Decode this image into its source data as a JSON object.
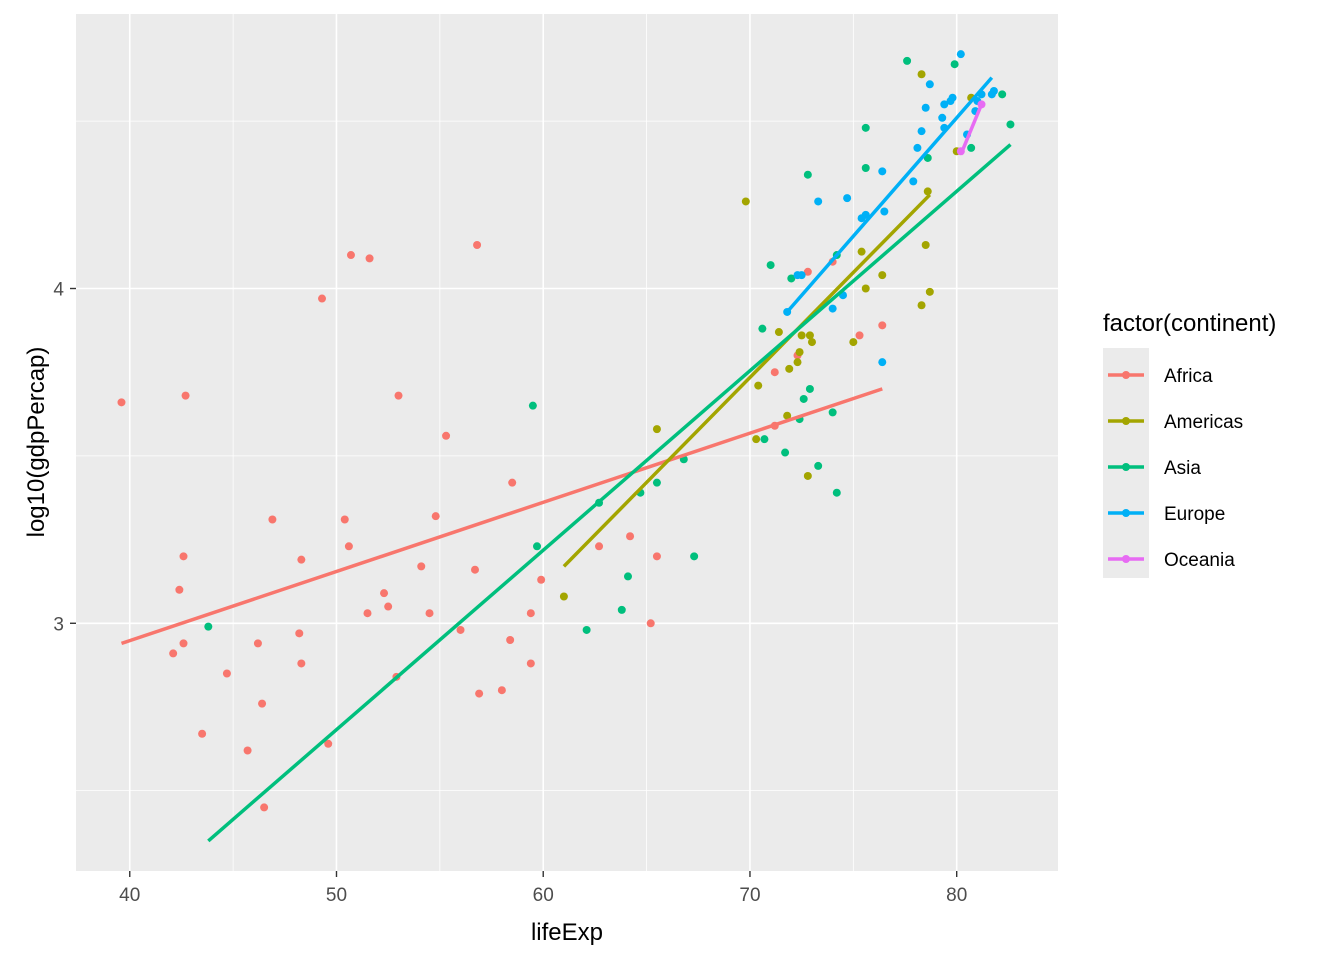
{
  "chart_data": {
    "type": "scatter",
    "title": "",
    "xlabel": "lifeExp",
    "ylabel": "log10(gdpPercap)",
    "xlim": [
      37.4,
      84.9
    ],
    "ylim": [
      2.26,
      4.82
    ],
    "xticks": [
      40,
      50,
      60,
      70,
      80
    ],
    "yticks": [
      3,
      4
    ],
    "legend": {
      "title": "factor(continent)",
      "position": "right"
    },
    "grid": true,
    "series": [
      {
        "name": "Africa",
        "color": "#F8766D",
        "points": [
          [
            39.6,
            3.66
          ],
          [
            42.1,
            2.91
          ],
          [
            42.4,
            3.1
          ],
          [
            42.6,
            2.94
          ],
          [
            42.6,
            3.2
          ],
          [
            42.7,
            3.68
          ],
          [
            43.5,
            2.67
          ],
          [
            44.7,
            2.85
          ],
          [
            45.7,
            2.62
          ],
          [
            46.2,
            2.94
          ],
          [
            46.4,
            2.76
          ],
          [
            46.5,
            2.45
          ],
          [
            46.9,
            3.31
          ],
          [
            48.2,
            2.97
          ],
          [
            48.3,
            2.88
          ],
          [
            48.3,
            3.19
          ],
          [
            49.3,
            3.97
          ],
          [
            49.6,
            2.64
          ],
          [
            50.4,
            3.31
          ],
          [
            50.6,
            3.23
          ],
          [
            50.7,
            4.1
          ],
          [
            51.5,
            3.03
          ],
          [
            51.6,
            4.09
          ],
          [
            52.3,
            3.09
          ],
          [
            52.5,
            3.05
          ],
          [
            52.9,
            2.84
          ],
          [
            53.0,
            3.68
          ],
          [
            54.1,
            3.17
          ],
          [
            54.5,
            3.03
          ],
          [
            54.8,
            3.32
          ],
          [
            55.3,
            3.56
          ],
          [
            56.0,
            2.98
          ],
          [
            56.7,
            3.16
          ],
          [
            56.8,
            4.13
          ],
          [
            56.9,
            2.79
          ],
          [
            58.0,
            2.8
          ],
          [
            58.4,
            2.95
          ],
          [
            58.5,
            3.42
          ],
          [
            59.4,
            2.88
          ],
          [
            59.4,
            3.03
          ],
          [
            59.9,
            3.13
          ],
          [
            62.7,
            3.23
          ],
          [
            64.2,
            3.26
          ],
          [
            65.2,
            3.0
          ],
          [
            65.5,
            3.2
          ],
          [
            71.2,
            3.59
          ],
          [
            71.2,
            3.75
          ],
          [
            72.3,
            3.8
          ],
          [
            72.8,
            4.05
          ],
          [
            74.0,
            4.08
          ],
          [
            75.3,
            3.86
          ],
          [
            76.4,
            3.89
          ]
        ],
        "trend": [
          [
            39.6,
            2.94
          ],
          [
            76.4,
            3.7
          ]
        ]
      },
      {
        "name": "Americas",
        "color": "#A3A500",
        "points": [
          [
            61.0,
            3.08
          ],
          [
            65.5,
            3.58
          ],
          [
            69.8,
            4.26
          ],
          [
            70.3,
            3.55
          ],
          [
            70.4,
            3.71
          ],
          [
            71.4,
            3.87
          ],
          [
            71.8,
            3.62
          ],
          [
            71.9,
            3.76
          ],
          [
            72.3,
            3.78
          ],
          [
            72.4,
            3.81
          ],
          [
            72.5,
            3.86
          ],
          [
            72.8,
            3.44
          ],
          [
            72.9,
            3.86
          ],
          [
            73.0,
            3.84
          ],
          [
            75.0,
            3.84
          ],
          [
            75.4,
            4.11
          ],
          [
            75.6,
            4.0
          ],
          [
            76.4,
            4.04
          ],
          [
            78.3,
            3.95
          ],
          [
            78.5,
            4.13
          ],
          [
            78.6,
            4.29
          ],
          [
            78.7,
            3.99
          ],
          [
            78.3,
            4.64
          ],
          [
            80.0,
            4.41
          ],
          [
            80.7,
            4.57
          ]
        ],
        "trend": [
          [
            61.0,
            3.17
          ],
          [
            78.7,
            4.28
          ]
        ]
      },
      {
        "name": "Asia",
        "color": "#00BF7D",
        "points": [
          [
            43.8,
            2.99
          ],
          [
            59.5,
            3.65
          ],
          [
            59.7,
            3.23
          ],
          [
            62.1,
            2.98
          ],
          [
            62.7,
            3.36
          ],
          [
            63.8,
            3.04
          ],
          [
            64.1,
            3.14
          ],
          [
            64.7,
            3.39
          ],
          [
            65.5,
            3.42
          ],
          [
            66.8,
            3.49
          ],
          [
            67.3,
            3.2
          ],
          [
            70.6,
            3.88
          ],
          [
            70.7,
            3.55
          ],
          [
            71.0,
            4.07
          ],
          [
            71.7,
            3.51
          ],
          [
            72.0,
            4.03
          ],
          [
            72.4,
            3.61
          ],
          [
            72.6,
            3.67
          ],
          [
            72.8,
            4.34
          ],
          [
            72.9,
            3.7
          ],
          [
            73.3,
            3.47
          ],
          [
            74.0,
            3.63
          ],
          [
            74.2,
            3.39
          ],
          [
            74.2,
            4.1
          ],
          [
            75.6,
            4.48
          ],
          [
            75.6,
            4.36
          ],
          [
            77.6,
            4.68
          ],
          [
            78.6,
            4.39
          ],
          [
            79.9,
            4.67
          ],
          [
            80.7,
            4.42
          ],
          [
            82.2,
            4.58
          ],
          [
            82.6,
            4.49
          ]
        ],
        "trend": [
          [
            43.8,
            2.35
          ],
          [
            82.6,
            4.43
          ]
        ]
      },
      {
        "name": "Europe",
        "color": "#00B0F6",
        "points": [
          [
            71.8,
            3.93
          ],
          [
            72.3,
            4.04
          ],
          [
            72.5,
            4.04
          ],
          [
            73.3,
            4.26
          ],
          [
            74.0,
            3.94
          ],
          [
            74.5,
            3.98
          ],
          [
            74.7,
            4.27
          ],
          [
            75.4,
            4.21
          ],
          [
            75.6,
            4.22
          ],
          [
            76.4,
            4.35
          ],
          [
            76.4,
            3.78
          ],
          [
            76.5,
            4.23
          ],
          [
            77.9,
            4.32
          ],
          [
            78.1,
            4.42
          ],
          [
            78.3,
            4.47
          ],
          [
            78.5,
            4.54
          ],
          [
            78.7,
            4.61
          ],
          [
            79.3,
            4.51
          ],
          [
            79.4,
            4.48
          ],
          [
            79.4,
            4.55
          ],
          [
            79.7,
            4.56
          ],
          [
            79.8,
            4.57
          ],
          [
            80.2,
            4.7
          ],
          [
            80.5,
            4.46
          ],
          [
            80.9,
            4.53
          ],
          [
            81.0,
            4.56
          ],
          [
            81.2,
            4.58
          ],
          [
            81.7,
            4.58
          ],
          [
            81.8,
            4.59
          ]
        ],
        "trend": [
          [
            71.8,
            3.93
          ],
          [
            81.7,
            4.63
          ]
        ]
      },
      {
        "name": "Oceania",
        "color": "#E76BF3",
        "points": [
          [
            80.2,
            4.41
          ],
          [
            81.2,
            4.55
          ]
        ],
        "trend": [
          [
            80.2,
            4.4
          ],
          [
            81.2,
            4.55
          ]
        ]
      }
    ]
  }
}
